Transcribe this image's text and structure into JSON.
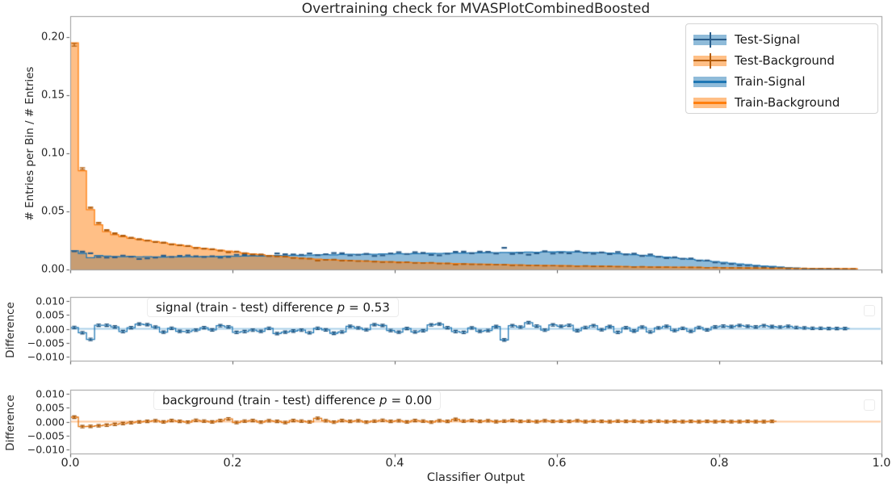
{
  "figure": {
    "title": "Overtraining check for MVASPlotCombinedBoosted",
    "xlabel": "Classifier Output",
    "colors": {
      "signal_edge": "#1f77b4",
      "background_edge": "#ff7f0e",
      "signal_fill": "#8fbbd9",
      "background_fill": "#ffbf86",
      "test_signal_marker": "#2a5d8a",
      "test_background_marker": "#b35c0a",
      "signal_zero_line": "#a9d0ea",
      "background_zero_line": "#ffc99d",
      "spine": "#9b9b9b"
    }
  },
  "legend": {
    "items": [
      {
        "label": "Test-Signal",
        "kind": "errorbar",
        "fill": "#8fbbd9",
        "marker": "#2a5d8a"
      },
      {
        "label": "Test-Background",
        "kind": "errorbar",
        "fill": "#ffbf86",
        "marker": "#b35c0a"
      },
      {
        "label": "Train-Signal",
        "kind": "filled-line",
        "fill": "#8fbbd9",
        "marker": "#1f77b4"
      },
      {
        "label": "Train-Background",
        "kind": "filled-line",
        "fill": "#ffbf86",
        "marker": "#ff7f0e"
      }
    ]
  },
  "chart_data": [
    {
      "panel": "main",
      "type": "area",
      "subtype": "step-histogram",
      "title": "Overtraining check for MVASPlotCombinedBoosted",
      "ylabel": "# Entries per Bin / # Entries",
      "xlim": [
        0.0,
        1.0
      ],
      "ylim": [
        0.0,
        0.218
      ],
      "bins": {
        "start": 0.0,
        "end": 1.0,
        "count": 100
      },
      "yticks": {
        "labels": [
          "0.00",
          "0.05",
          "0.10",
          "0.15",
          "0.20"
        ],
        "values": [
          0.0,
          0.05,
          0.1,
          0.15,
          0.2
        ]
      },
      "xticks": {
        "labels": [
          "0.0",
          "0.2",
          "0.4",
          "0.6",
          "0.8",
          "1.0"
        ],
        "values": [
          0.0,
          0.2,
          0.4,
          0.6,
          0.8,
          1.0
        ]
      },
      "note": "Test-Signal = train_signal - signal_diff; Test-Background = train_background - background_diff; errorbar half-length approx 0.0025*sqrt(value)",
      "err_scale": 0.0025,
      "series": [
        {
          "name": "Train-Signal",
          "values": [
            0.0162,
            0.0139,
            0.0102,
            0.012,
            0.0116,
            0.0112,
            0.011,
            0.0113,
            0.0108,
            0.011,
            0.0109,
            0.0107,
            0.011,
            0.0108,
            0.0111,
            0.0109,
            0.0112,
            0.011,
            0.0113,
            0.0115,
            0.0114,
            0.0116,
            0.0118,
            0.0116,
            0.0119,
            0.0121,
            0.0119,
            0.0122,
            0.0121,
            0.0124,
            0.0126,
            0.0128,
            0.0126,
            0.0129,
            0.0131,
            0.013,
            0.0132,
            0.0131,
            0.0134,
            0.0133,
            0.0136,
            0.0135,
            0.0137,
            0.0136,
            0.0139,
            0.0138,
            0.014,
            0.0142,
            0.0141,
            0.0143,
            0.0144,
            0.0146,
            0.0145,
            0.0147,
            0.0146,
            0.0148,
            0.015,
            0.0149,
            0.0152,
            0.0151,
            0.0154,
            0.0152,
            0.0151,
            0.0149,
            0.0147,
            0.0144,
            0.0141,
            0.0137,
            0.0133,
            0.0128,
            0.0123,
            0.0118,
            0.0112,
            0.0106,
            0.01,
            0.0094,
            0.0087,
            0.0081,
            0.0074,
            0.0068,
            0.0061,
            0.0055,
            0.0048,
            0.0042,
            0.0036,
            0.0031,
            0.0026,
            0.0021,
            0.0017,
            0.0013,
            0.001,
            0.0007,
            0.0005,
            0.0003,
            0.0002,
            0.0001,
            0.0001,
            0,
            0,
            0
          ]
        },
        {
          "name": "Train-Background",
          "values": [
            0.195,
            0.085,
            0.0515,
            0.0385,
            0.0325,
            0.03,
            0.0283,
            0.0269,
            0.0259,
            0.025,
            0.024,
            0.023,
            0.022,
            0.021,
            0.02,
            0.019,
            0.0181,
            0.0173,
            0.0166,
            0.0159,
            0.015,
            0.0142,
            0.0134,
            0.0127,
            0.012,
            0.0114,
            0.0108,
            0.0103,
            0.0098,
            0.0093,
            0.0089,
            0.0086,
            0.0083,
            0.008,
            0.0077,
            0.0075,
            0.0072,
            0.007,
            0.0068,
            0.0066,
            0.0064,
            0.0062,
            0.006,
            0.0058,
            0.0056,
            0.0054,
            0.0053,
            0.0051,
            0.0049,
            0.0048,
            0.0046,
            0.0045,
            0.0043,
            0.0042,
            0.004,
            0.0039,
            0.0038,
            0.0036,
            0.0035,
            0.0034,
            0.0033,
            0.0032,
            0.0031,
            0.003,
            0.0029,
            0.0028,
            0.0027,
            0.0026,
            0.0025,
            0.0024,
            0.0023,
            0.0022,
            0.0022,
            0.0021,
            0.002,
            0.0019,
            0.0019,
            0.0018,
            0.0017,
            0.0017,
            0.0016,
            0.0015,
            0.0015,
            0.0014,
            0.0013,
            0.0013,
            0.0012,
            0.0012,
            0.0011,
            0.001,
            0.001,
            0.0009,
            0.0009,
            0.0008,
            0.0008,
            0.0007,
            0.0007,
            0,
            0,
            0
          ]
        }
      ]
    },
    {
      "panel": "signal-difference",
      "type": "line",
      "subtype": "step-difference",
      "ylabel": "Difference",
      "ylim": [
        -0.0115,
        0.0115
      ],
      "yticks": {
        "labels": [
          "0.010",
          "0.005",
          "0.000",
          "−0.005",
          "−0.010"
        ],
        "values": [
          0.01,
          0.005,
          0.0,
          -0.005,
          -0.01
        ]
      },
      "annotation": {
        "prefix": "signal (train - test) difference",
        "p_symbol": "p",
        "p_value": "= 0.53"
      },
      "values": [
        0.0005,
        -0.0014,
        -0.0038,
        0.0013,
        0.0013,
        0.0007,
        -0.001,
        0.0004,
        0.0017,
        0.0015,
        0.0006,
        -0.0012,
        0.0002,
        -0.0009,
        -0.001,
        -0.0005,
        0.0004,
        -0.0004,
        0.0011,
        0.0007,
        -0.0013,
        -0.001,
        -0.0005,
        -0.0009,
        0.0002,
        -0.0017,
        -0.0012,
        -0.0008,
        -0.0005,
        -0.0014,
        0.0002,
        -0.0004,
        -0.0016,
        -0.0011,
        0.0009,
        0.0003,
        -0.0003,
        0.0015,
        0.0012,
        -0.0006,
        -0.0012,
        0.0001,
        -0.0011,
        -0.0007,
        0.0014,
        0.0017,
        0.0004,
        -0.001,
        -0.0013,
        0.0003,
        -0.0009,
        -0.0006,
        0.0008,
        -0.004,
        0.0011,
        0.0006,
        0.0022,
        0.001,
        -0.0005,
        0.0014,
        0.0009,
        0.0013,
        -0.0007,
        0.0005,
        0.0011,
        -0.0003,
        0.0008,
        -0.0013,
        0.0004,
        -0.0008,
        0.0006,
        -0.0011,
        0.0003,
        0.0009,
        -0.0006,
        0.0002,
        -0.0009,
        0.0005,
        -0.0004,
        0.0007,
        0.001,
        0.0008,
        0.0012,
        0.0009,
        0.0007,
        0.0011,
        0.0008,
        0.0006,
        0.0009,
        0.0005,
        0.0003,
        0.0002,
        0.0002,
        0.0001,
        0.0001,
        0.0001,
        0,
        0,
        0,
        0
      ]
    },
    {
      "panel": "background-difference",
      "type": "line",
      "subtype": "step-difference",
      "ylabel": "Difference",
      "ylim": [
        -0.0115,
        0.0115
      ],
      "yticks": {
        "labels": [
          "0.010",
          "0.005",
          "0.000",
          "−0.005",
          "−0.010"
        ],
        "values": [
          0.01,
          0.005,
          0.0,
          -0.005,
          -0.01
        ]
      },
      "xticks": {
        "labels": [
          "0.0",
          "0.2",
          "0.4",
          "0.6",
          "0.8",
          "1.0"
        ],
        "values": [
          0.0,
          0.2,
          0.4,
          0.6,
          0.8,
          1.0
        ]
      },
      "annotation": {
        "prefix": "background (train - test) difference",
        "p_symbol": "p",
        "p_value": "= 0.00"
      },
      "values": [
        0.0016,
        -0.0018,
        -0.0017,
        -0.0015,
        -0.0013,
        -0.001,
        -0.0007,
        -0.0004,
        -0.0001,
        0.0001,
        0.0003,
        -0.0001,
        0.0004,
        0.0001,
        -0.0002,
        0.0005,
        0.0002,
        -0.0001,
        0.0004,
        0.001,
        -0.0003,
        0.0002,
        0.0004,
        -0.0002,
        0.0003,
        0.0001,
        -0.0003,
        0.0004,
        0.0002,
        -0.0001,
        0.0012,
        0.0003,
        -0.0002,
        0.0004,
        0.0001,
        0.0003,
        -0.0002,
        0.0002,
        0.0005,
        0.0001,
        0.0003,
        -0.0001,
        0.0004,
        0.0002,
        -0.0002,
        0.0003,
        0.0001,
        0.0008,
        0.0002,
        0.0004,
        0.0001,
        0.0003,
        0,
        0.0002,
        0.0004,
        0.0001,
        0.0002,
        0,
        0.0003,
        0.0001,
        0.0002,
        0.0001,
        0.0003,
        0,
        0.0002,
        0.0001,
        0,
        0.0002,
        0.0001,
        0.0002,
        0,
        0.0001,
        0.0002,
        0,
        0.0001,
        0,
        0.0001,
        0,
        0.0001,
        0,
        0.0001,
        0,
        0,
        0.0001,
        0,
        0,
        0.0001,
        0,
        0,
        0,
        0,
        0,
        0,
        0,
        0,
        0,
        0,
        0,
        0,
        0
      ]
    }
  ]
}
